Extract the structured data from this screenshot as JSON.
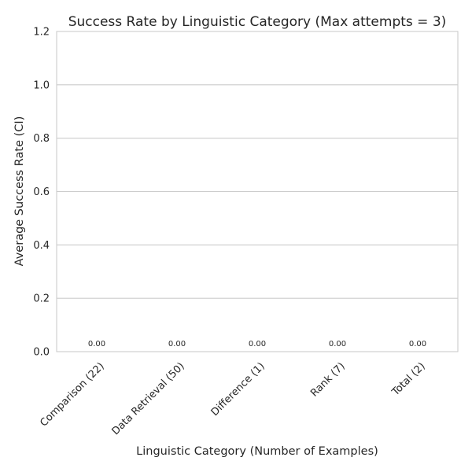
{
  "chart_data": {
    "type": "bar",
    "title": "Success Rate by Linguistic Category (Max attempts = 3)",
    "xlabel": "Linguistic Category (Number of Examples)",
    "ylabel": "Average Success Rate (CI)",
    "categories": [
      "Comparison (22)",
      "Data Retrieval (50)",
      "Difference (1)",
      "Rank (7)",
      "Total (2)"
    ],
    "values": [
      0.0,
      0.0,
      0.0,
      0.0,
      0.0
    ],
    "data_labels": [
      "0.00",
      "0.00",
      "0.00",
      "0.00",
      "0.00"
    ],
    "ylim": [
      0,
      1.2
    ],
    "yticks": [
      0.0,
      0.2,
      0.4,
      0.6,
      0.8,
      1.0,
      1.2
    ],
    "ytick_labels": [
      "0.0",
      "0.2",
      "0.4",
      "0.6",
      "0.8",
      "1.0",
      "1.2"
    ],
    "grid": "y-major",
    "legend": "none"
  }
}
